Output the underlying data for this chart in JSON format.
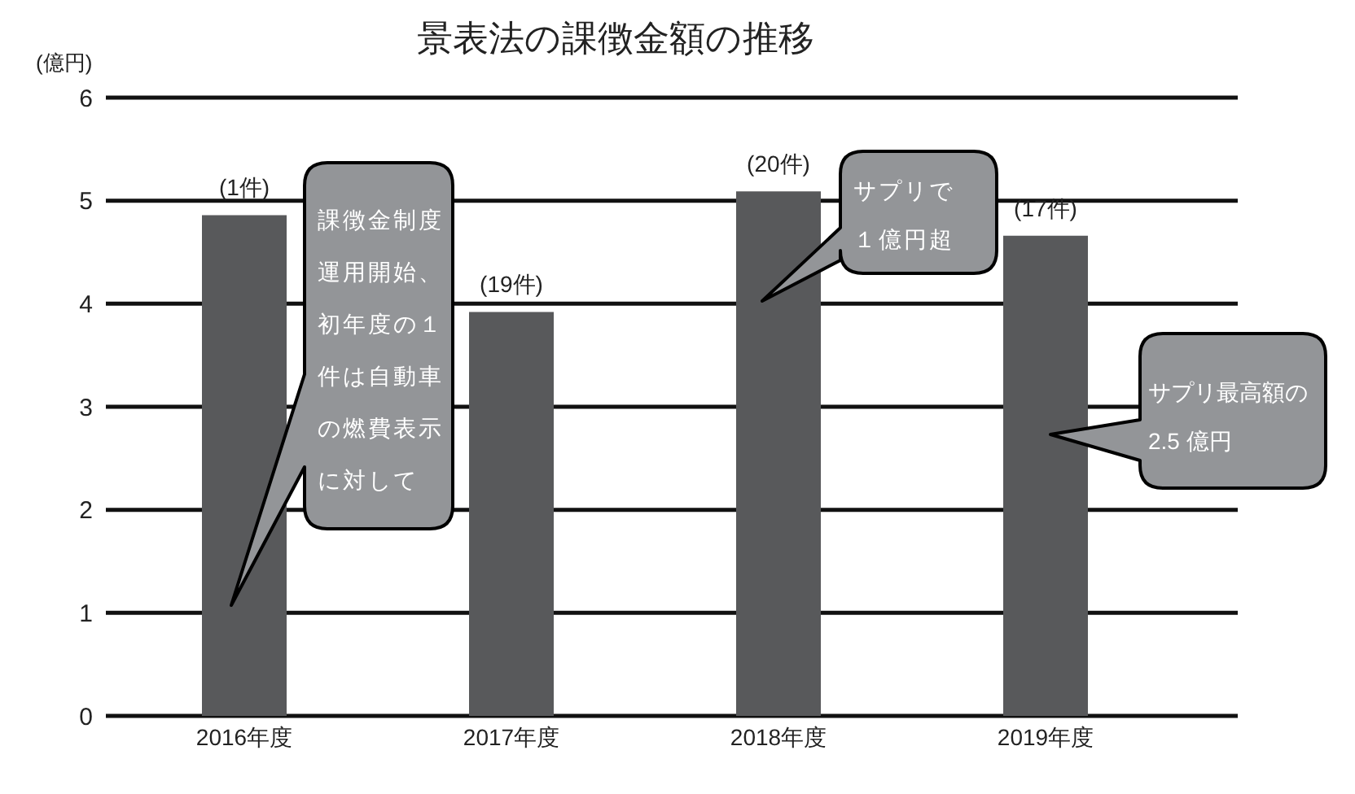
{
  "chart_data": {
    "type": "bar",
    "title": "景表法の課徴金額の推移",
    "ylabel": "(億円)",
    "categories": [
      "2016年度",
      "2017年度",
      "2018年度",
      "2019年度"
    ],
    "values": [
      4.86,
      3.92,
      5.09,
      4.66
    ],
    "color": "#58595b",
    "ylim": [
      0,
      6
    ],
    "yticks": [
      0,
      1,
      2,
      3,
      4,
      5,
      6
    ],
    "grid": "y",
    "annotations": [
      "(1件)",
      "(19件)",
      "(20件)",
      "(17件)",
      "課徴金制度運用開始、初年度の１件は自動車の燃費表示に対して",
      "サプリで１億円超",
      "サプリ最高額の2.5 億円"
    ]
  }
}
